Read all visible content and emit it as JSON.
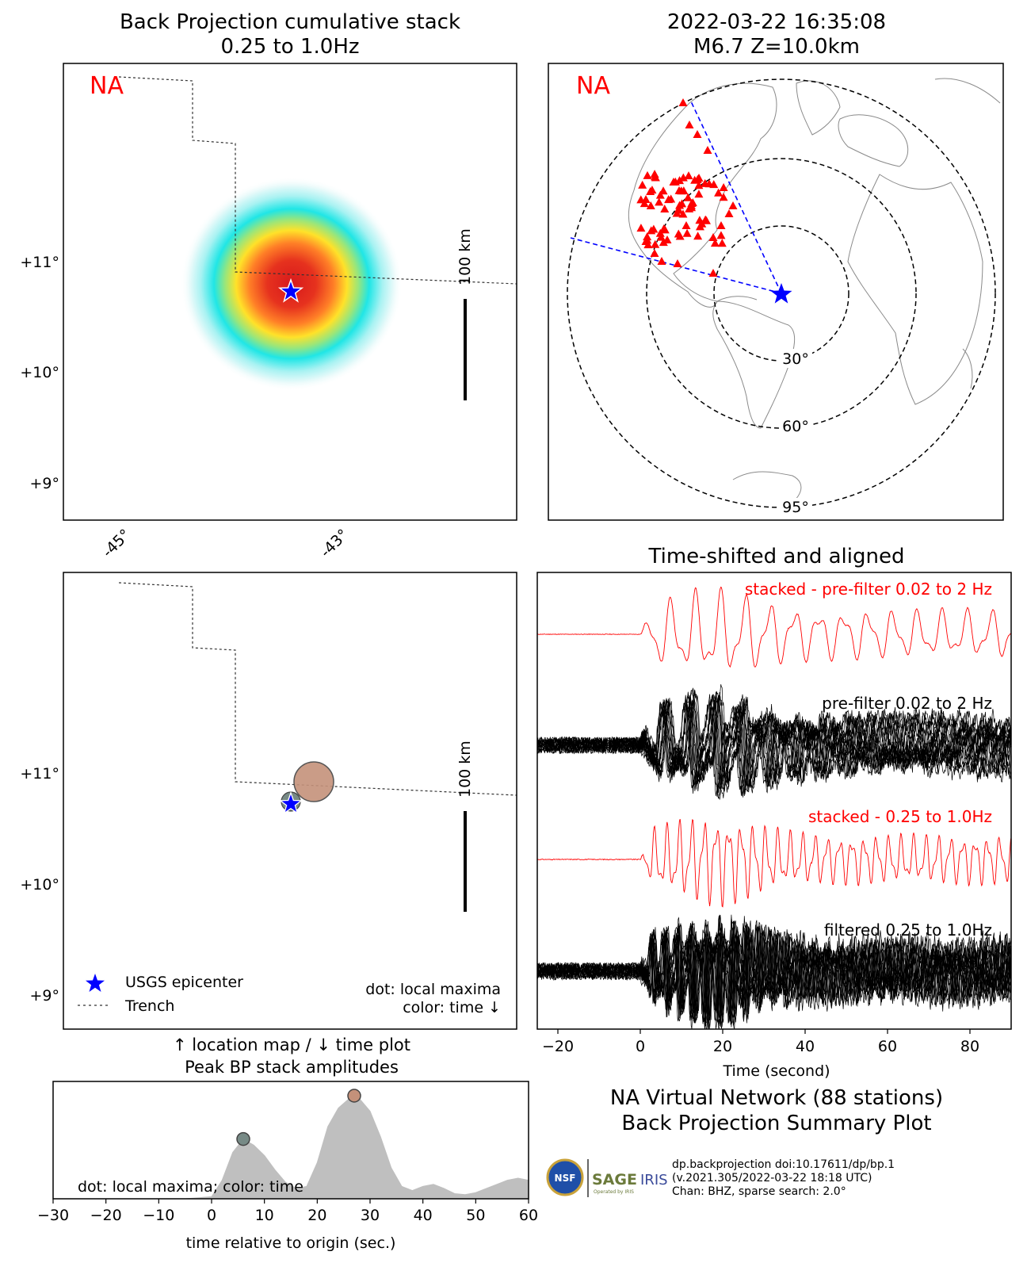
{
  "titles": {
    "bp_line1": "Back Projection cumulative stack",
    "bp_line2": "0.25 to 1.0Hz",
    "event_line1": "2022-03-22 16:35:08",
    "event_line2": "M6.7 Z=10.0km",
    "aligned": "Time-shifted and aligned",
    "summary_line1": "NA Virtual Network (88 stations)",
    "summary_line2": "Back Projection Summary Plot",
    "peak_line1": "↑ location map / ↓ time plot",
    "peak_line2": "Peak BP stack amplitudes"
  },
  "network_label": "NA",
  "scale_bar": "100 km",
  "map_axis": {
    "lat_ticks": [
      "+11°",
      "+10°",
      "+9°"
    ],
    "lon_ticks": [
      "-45°",
      "-43°"
    ]
  },
  "legend": {
    "epicenter": "USGS epicenter",
    "trench": "Trench",
    "note1": "dot: local maxima",
    "note2": "color: time ↓"
  },
  "globe": {
    "rings": [
      "30°",
      "60°",
      "95°"
    ]
  },
  "traces": {
    "labels": [
      "stacked - pre-filter 0.02 to 2 Hz",
      "pre-filter 0.02 to 2 Hz",
      "stacked - 0.25 to 1.0Hz",
      "filtered 0.25 to 1.0Hz"
    ],
    "xticks": [
      "−20",
      "0",
      "20",
      "40",
      "60",
      "80"
    ],
    "xlabel": "Time (second)"
  },
  "credits": {
    "line1": "dp.backprojection doi:10.17611/dp/bp.1",
    "line2": "(v.2021.305/2022-03-22 18:18 UTC)",
    "line3": "Chan: BHZ, sparse search: 2.0°",
    "nsf": "NSF",
    "sage": "SAGE",
    "sage_sub": "Operated by IRIS",
    "iris": "IRIS"
  },
  "colors": {
    "station": "#ff0000",
    "epicenter": "#0000ff",
    "stack_trace": "#ff0000",
    "raw_trace": "#000000",
    "peak_fill": "#bfbfbf",
    "early_dot": "#778a86",
    "late_dot": "#c4917a"
  },
  "chart_data": [
    {
      "type": "heatmap",
      "title": "Back Projection cumulative stack 0.25 to 1.0Hz",
      "xlabel": "",
      "ylabel": "",
      "lat_range": [
        8.65,
        12.75
      ],
      "lon_range": [
        -45.5,
        -41.4
      ],
      "x_tick_values": [
        -45,
        -43
      ],
      "y_tick_values": [
        11,
        10,
        9
      ],
      "peak": {
        "lon": -43.2,
        "lat": 10.9
      },
      "epicenter": {
        "lon": -43.5,
        "lat": 10.7
      }
    },
    {
      "type": "line",
      "title": "Time-shifted and aligned",
      "xlabel": "Time (second)",
      "xlim": [
        -25,
        90
      ],
      "x_tick_values": [
        -20,
        0,
        20,
        40,
        60,
        80
      ],
      "series": [
        {
          "name": "stacked - pre-filter 0.02 to 2 Hz"
        },
        {
          "name": "pre-filter 0.02 to 2 Hz"
        },
        {
          "name": "stacked - 0.25 to 1.0Hz"
        },
        {
          "name": "filtered 0.25 to 1.0Hz"
        }
      ]
    },
    {
      "type": "area",
      "title": "Peak BP stack amplitudes",
      "xlabel": "time relative to origin (sec.)",
      "xlim": [
        -30,
        60
      ],
      "x_tick_values": [
        -30,
        -20,
        -10,
        0,
        10,
        20,
        30,
        40,
        50,
        60
      ],
      "x_tick_labels": [
        "−30",
        "−20",
        "−10",
        "0",
        "10",
        "20",
        "30",
        "40",
        "50",
        "60"
      ],
      "x": [
        -30,
        -5,
        0,
        2,
        4,
        6,
        8,
        10,
        12,
        14,
        16,
        18,
        20,
        22,
        24,
        26,
        27,
        28,
        30,
        32,
        34,
        36,
        38,
        40,
        42,
        44,
        46,
        48,
        50,
        52,
        54,
        56,
        58,
        60
      ],
      "values": [
        0,
        0,
        0.02,
        0.18,
        0.45,
        0.58,
        0.52,
        0.42,
        0.28,
        0.16,
        0.1,
        0.12,
        0.35,
        0.7,
        0.88,
        0.97,
        1.0,
        0.97,
        0.85,
        0.6,
        0.3,
        0.12,
        0.08,
        0.12,
        0.14,
        0.1,
        0.05,
        0.04,
        0.06,
        0.1,
        0.14,
        0.18,
        0.2,
        0.18
      ],
      "maxima": [
        {
          "x": 6,
          "y": 0.58
        },
        {
          "x": 27,
          "y": 1.0
        }
      ],
      "note": "dot: local maxima; color: time"
    }
  ]
}
